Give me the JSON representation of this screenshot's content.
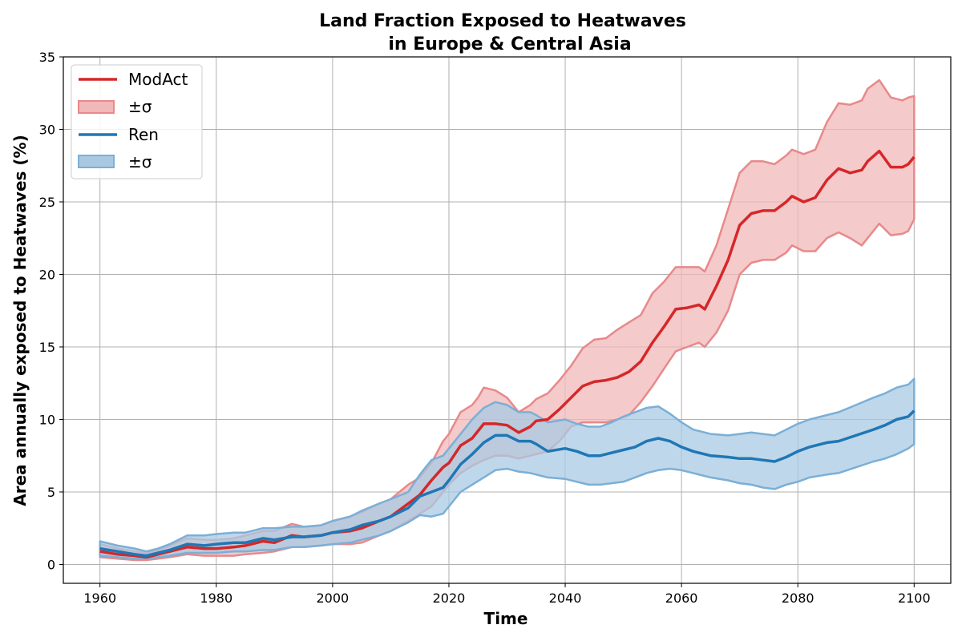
{
  "chart_data": {
    "type": "line",
    "title_line1": "Land Fraction Exposed to Heatwaves",
    "title_line2": "in Europe & Central Asia",
    "xlabel": "Time",
    "ylabel": "Area annually exposed to Heatwaves (%)",
    "xlim": [
      1953.7,
      2106.3
    ],
    "ylim": [
      -1.3,
      35
    ],
    "xticks": [
      1960,
      1980,
      2000,
      2020,
      2040,
      2060,
      2080,
      2100
    ],
    "yticks": [
      0,
      5,
      10,
      15,
      20,
      25,
      30,
      35
    ],
    "grid": true,
    "legend": {
      "placement": "top-left",
      "entries": [
        "ModAct",
        "±σ",
        "Ren",
        "±σ"
      ]
    },
    "series": [
      {
        "name": "ModAct",
        "color": "#d62728",
        "band_fill": "#f0b8b9",
        "band_edge": "#e8898a",
        "points": [
          [
            1960,
            0.9,
            0.5,
            1.4
          ],
          [
            1963,
            0.7,
            0.4,
            1.1
          ],
          [
            1966,
            0.6,
            0.3,
            0.9
          ],
          [
            1968,
            0.5,
            0.3,
            0.8
          ],
          [
            1970,
            0.7,
            0.4,
            1.0
          ],
          [
            1972,
            0.9,
            0.5,
            1.3
          ],
          [
            1975,
            1.2,
            0.7,
            1.8
          ],
          [
            1978,
            1.1,
            0.6,
            1.7
          ],
          [
            1980,
            1.1,
            0.6,
            1.7
          ],
          [
            1983,
            1.2,
            0.6,
            1.8
          ],
          [
            1985,
            1.3,
            0.7,
            2.0
          ],
          [
            1988,
            1.6,
            0.8,
            2.3
          ],
          [
            1990,
            1.5,
            0.9,
            2.3
          ],
          [
            1993,
            2.0,
            1.2,
            2.8
          ],
          [
            1995,
            1.9,
            1.2,
            2.6
          ],
          [
            1998,
            2.0,
            1.3,
            2.7
          ],
          [
            2000,
            2.2,
            1.4,
            3.0
          ],
          [
            2003,
            2.3,
            1.4,
            3.3
          ],
          [
            2005,
            2.5,
            1.5,
            3.6
          ],
          [
            2008,
            3.0,
            2.0,
            4.2
          ],
          [
            2010,
            3.3,
            2.3,
            4.5
          ],
          [
            2013,
            4.2,
            3.0,
            5.5
          ],
          [
            2015,
            4.8,
            3.5,
            6.0
          ],
          [
            2017,
            5.8,
            4.0,
            7.0
          ],
          [
            2019,
            6.7,
            5.0,
            8.5
          ],
          [
            2020,
            7.0,
            5.5,
            9.0
          ],
          [
            2022,
            8.2,
            6.3,
            10.5
          ],
          [
            2024,
            8.7,
            6.8,
            11.0
          ],
          [
            2025,
            9.2,
            7.0,
            11.5
          ],
          [
            2026,
            9.7,
            7.2,
            12.2
          ],
          [
            2028,
            9.7,
            7.5,
            12.0
          ],
          [
            2030,
            9.6,
            7.5,
            11.5
          ],
          [
            2032,
            9.1,
            7.3,
            10.5
          ],
          [
            2034,
            9.5,
            7.5,
            11.0
          ],
          [
            2035,
            9.9,
            7.6,
            11.4
          ],
          [
            2037,
            10.0,
            7.8,
            11.8
          ],
          [
            2039,
            10.7,
            8.5,
            12.7
          ],
          [
            2041,
            11.5,
            9.5,
            13.7
          ],
          [
            2043,
            12.3,
            9.8,
            14.9
          ],
          [
            2045,
            12.6,
            9.8,
            15.5
          ],
          [
            2047,
            12.7,
            9.8,
            15.6
          ],
          [
            2049,
            12.9,
            10.0,
            16.2
          ],
          [
            2051,
            13.3,
            10.3,
            16.7
          ],
          [
            2053,
            14.0,
            11.2,
            17.2
          ],
          [
            2055,
            15.3,
            12.3,
            18.7
          ],
          [
            2057,
            16.4,
            13.5,
            19.5
          ],
          [
            2059,
            17.6,
            14.7,
            20.5
          ],
          [
            2061,
            17.7,
            15.0,
            20.5
          ],
          [
            2063,
            17.9,
            15.3,
            20.5
          ],
          [
            2064,
            17.6,
            15.0,
            20.2
          ],
          [
            2066,
            19.2,
            16.0,
            22.0
          ],
          [
            2068,
            21.0,
            17.5,
            24.5
          ],
          [
            2070,
            23.4,
            20.0,
            27.0
          ],
          [
            2072,
            24.2,
            20.8,
            27.8
          ],
          [
            2074,
            24.4,
            21.0,
            27.8
          ],
          [
            2076,
            24.4,
            21.0,
            27.6
          ],
          [
            2078,
            25.0,
            21.5,
            28.2
          ],
          [
            2079,
            25.4,
            22.0,
            28.6
          ],
          [
            2081,
            25.0,
            21.6,
            28.3
          ],
          [
            2083,
            25.3,
            21.6,
            28.6
          ],
          [
            2085,
            26.5,
            22.5,
            30.5
          ],
          [
            2087,
            27.3,
            22.9,
            31.8
          ],
          [
            2089,
            27.0,
            22.5,
            31.7
          ],
          [
            2091,
            27.2,
            22.0,
            32.0
          ],
          [
            2092,
            27.8,
            22.5,
            32.8
          ],
          [
            2094,
            28.5,
            23.5,
            33.4
          ],
          [
            2096,
            27.4,
            22.7,
            32.2
          ],
          [
            2098,
            27.4,
            22.8,
            32.0
          ],
          [
            2099,
            27.6,
            23.0,
            32.2
          ],
          [
            2100,
            28.1,
            23.8,
            32.3
          ]
        ]
      },
      {
        "name": "Ren",
        "color": "#1f77b4",
        "band_fill": "#a9c9e3",
        "band_edge": "#7bafd6",
        "points": [
          [
            1960,
            1.1,
            0.6,
            1.6
          ],
          [
            1963,
            0.9,
            0.5,
            1.3
          ],
          [
            1966,
            0.7,
            0.4,
            1.1
          ],
          [
            1968,
            0.6,
            0.4,
            0.9
          ],
          [
            1970,
            0.8,
            0.5,
            1.1
          ],
          [
            1972,
            1.0,
            0.6,
            1.4
          ],
          [
            1975,
            1.4,
            0.8,
            2.0
          ],
          [
            1978,
            1.3,
            0.8,
            2.0
          ],
          [
            1980,
            1.4,
            0.8,
            2.1
          ],
          [
            1983,
            1.5,
            0.9,
            2.2
          ],
          [
            1985,
            1.5,
            0.9,
            2.2
          ],
          [
            1988,
            1.8,
            1.0,
            2.5
          ],
          [
            1990,
            1.7,
            1.0,
            2.5
          ],
          [
            1993,
            1.9,
            1.2,
            2.6
          ],
          [
            1995,
            1.9,
            1.2,
            2.6
          ],
          [
            1998,
            2.0,
            1.3,
            2.7
          ],
          [
            2000,
            2.2,
            1.4,
            3.0
          ],
          [
            2003,
            2.4,
            1.5,
            3.3
          ],
          [
            2005,
            2.7,
            1.7,
            3.7
          ],
          [
            2008,
            3.0,
            2.0,
            4.2
          ],
          [
            2010,
            3.3,
            2.3,
            4.5
          ],
          [
            2013,
            3.9,
            2.9,
            5.0
          ],
          [
            2015,
            4.7,
            3.4,
            6.2
          ],
          [
            2017,
            5.0,
            3.3,
            7.2
          ],
          [
            2019,
            5.3,
            3.5,
            7.5
          ],
          [
            2020,
            5.8,
            4.0,
            8.0
          ],
          [
            2022,
            6.9,
            5.0,
            9.0
          ],
          [
            2024,
            7.6,
            5.5,
            10.0
          ],
          [
            2026,
            8.4,
            6.0,
            10.8
          ],
          [
            2028,
            8.9,
            6.5,
            11.2
          ],
          [
            2030,
            8.9,
            6.6,
            11.0
          ],
          [
            2032,
            8.5,
            6.4,
            10.5
          ],
          [
            2034,
            8.5,
            6.3,
            10.5
          ],
          [
            2035,
            8.3,
            6.2,
            10.3
          ],
          [
            2037,
            7.8,
            6.0,
            9.8
          ],
          [
            2040,
            8.0,
            5.9,
            10.0
          ],
          [
            2042,
            7.8,
            5.7,
            9.7
          ],
          [
            2044,
            7.5,
            5.5,
            9.5
          ],
          [
            2046,
            7.5,
            5.5,
            9.5
          ],
          [
            2048,
            7.7,
            5.6,
            9.8
          ],
          [
            2050,
            7.9,
            5.7,
            10.2
          ],
          [
            2052,
            8.1,
            6.0,
            10.5
          ],
          [
            2054,
            8.5,
            6.3,
            10.8
          ],
          [
            2056,
            8.7,
            6.5,
            10.9
          ],
          [
            2058,
            8.5,
            6.6,
            10.4
          ],
          [
            2060,
            8.1,
            6.5,
            9.8
          ],
          [
            2062,
            7.8,
            6.3,
            9.3
          ],
          [
            2065,
            7.5,
            6.0,
            9.0
          ],
          [
            2068,
            7.4,
            5.8,
            8.9
          ],
          [
            2070,
            7.3,
            5.6,
            9.0
          ],
          [
            2072,
            7.3,
            5.5,
            9.1
          ],
          [
            2074,
            7.2,
            5.3,
            9.0
          ],
          [
            2076,
            7.1,
            5.2,
            8.9
          ],
          [
            2078,
            7.4,
            5.5,
            9.3
          ],
          [
            2080,
            7.8,
            5.7,
            9.7
          ],
          [
            2082,
            8.1,
            6.0,
            10.0
          ],
          [
            2085,
            8.4,
            6.2,
            10.3
          ],
          [
            2087,
            8.5,
            6.3,
            10.5
          ],
          [
            2090,
            8.9,
            6.7,
            11.0
          ],
          [
            2093,
            9.3,
            7.1,
            11.5
          ],
          [
            2095,
            9.6,
            7.3,
            11.8
          ],
          [
            2097,
            10.0,
            7.6,
            12.2
          ],
          [
            2099,
            10.2,
            8.0,
            12.4
          ],
          [
            2100,
            10.6,
            8.3,
            12.8
          ]
        ]
      }
    ]
  }
}
